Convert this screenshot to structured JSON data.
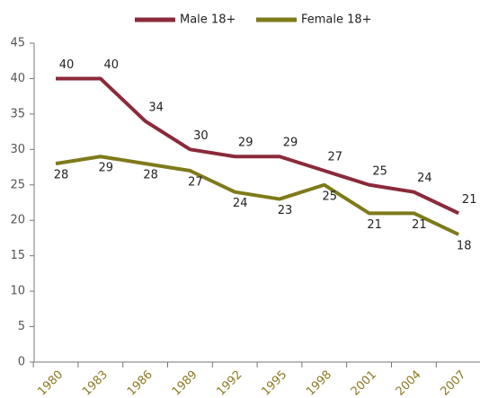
{
  "chart_data": {
    "type": "line",
    "categories": [
      "1980",
      "1983",
      "1986",
      "1989",
      "1992",
      "1995",
      "1998",
      "2001",
      "2004",
      "2007"
    ],
    "series": [
      {
        "name": "Male 18+",
        "color": "#8b2a3a",
        "values": [
          40,
          40,
          34,
          30,
          29,
          29,
          27,
          25,
          24,
          21
        ]
      },
      {
        "name": "Female 18+",
        "color": "#7f7a1a",
        "values": [
          28,
          29,
          28,
          27,
          24,
          23,
          25,
          21,
          21,
          18
        ]
      }
    ],
    "ylim": [
      0,
      45
    ],
    "yticks": [
      0,
      5,
      10,
      15,
      20,
      25,
      30,
      35,
      40,
      45
    ],
    "legend": "top"
  }
}
